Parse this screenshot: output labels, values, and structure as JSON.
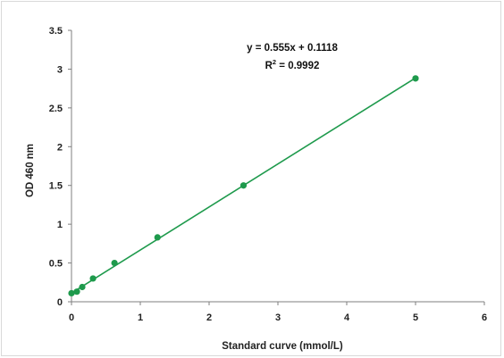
{
  "chart_data": {
    "type": "scatter",
    "title": "",
    "xlabel": "Standard curve (mmol/L)",
    "ylabel": "OD 460 nm",
    "xlim": [
      0,
      6
    ],
    "ylim": [
      0,
      3.5
    ],
    "x_ticks": [
      "0",
      "1",
      "2",
      "3",
      "4",
      "5",
      "6"
    ],
    "y_ticks": [
      "0",
      "0.5",
      "1",
      "1.5",
      "2",
      "2.5",
      "3",
      "3.5"
    ],
    "grid": false,
    "legend": "none",
    "series": [
      {
        "x": [
          0,
          0.078,
          0.156,
          0.3125,
          0.625,
          1.25,
          2.5,
          5
        ],
        "y": [
          0.11,
          0.13,
          0.19,
          0.3,
          0.5,
          0.83,
          1.5,
          2.88
        ],
        "color": "#1e9a4c"
      }
    ],
    "trendline": {
      "type": "linear",
      "slope": 0.555,
      "intercept": 0.1118,
      "x_range": [
        0,
        5
      ],
      "color": "#1e9a4c"
    },
    "annotations": {
      "equation": "y = 0.555x + 0.1118",
      "r2_prefix": "R",
      "r2_exp": "2",
      "r2_suffix": " = 0.9992"
    }
  }
}
